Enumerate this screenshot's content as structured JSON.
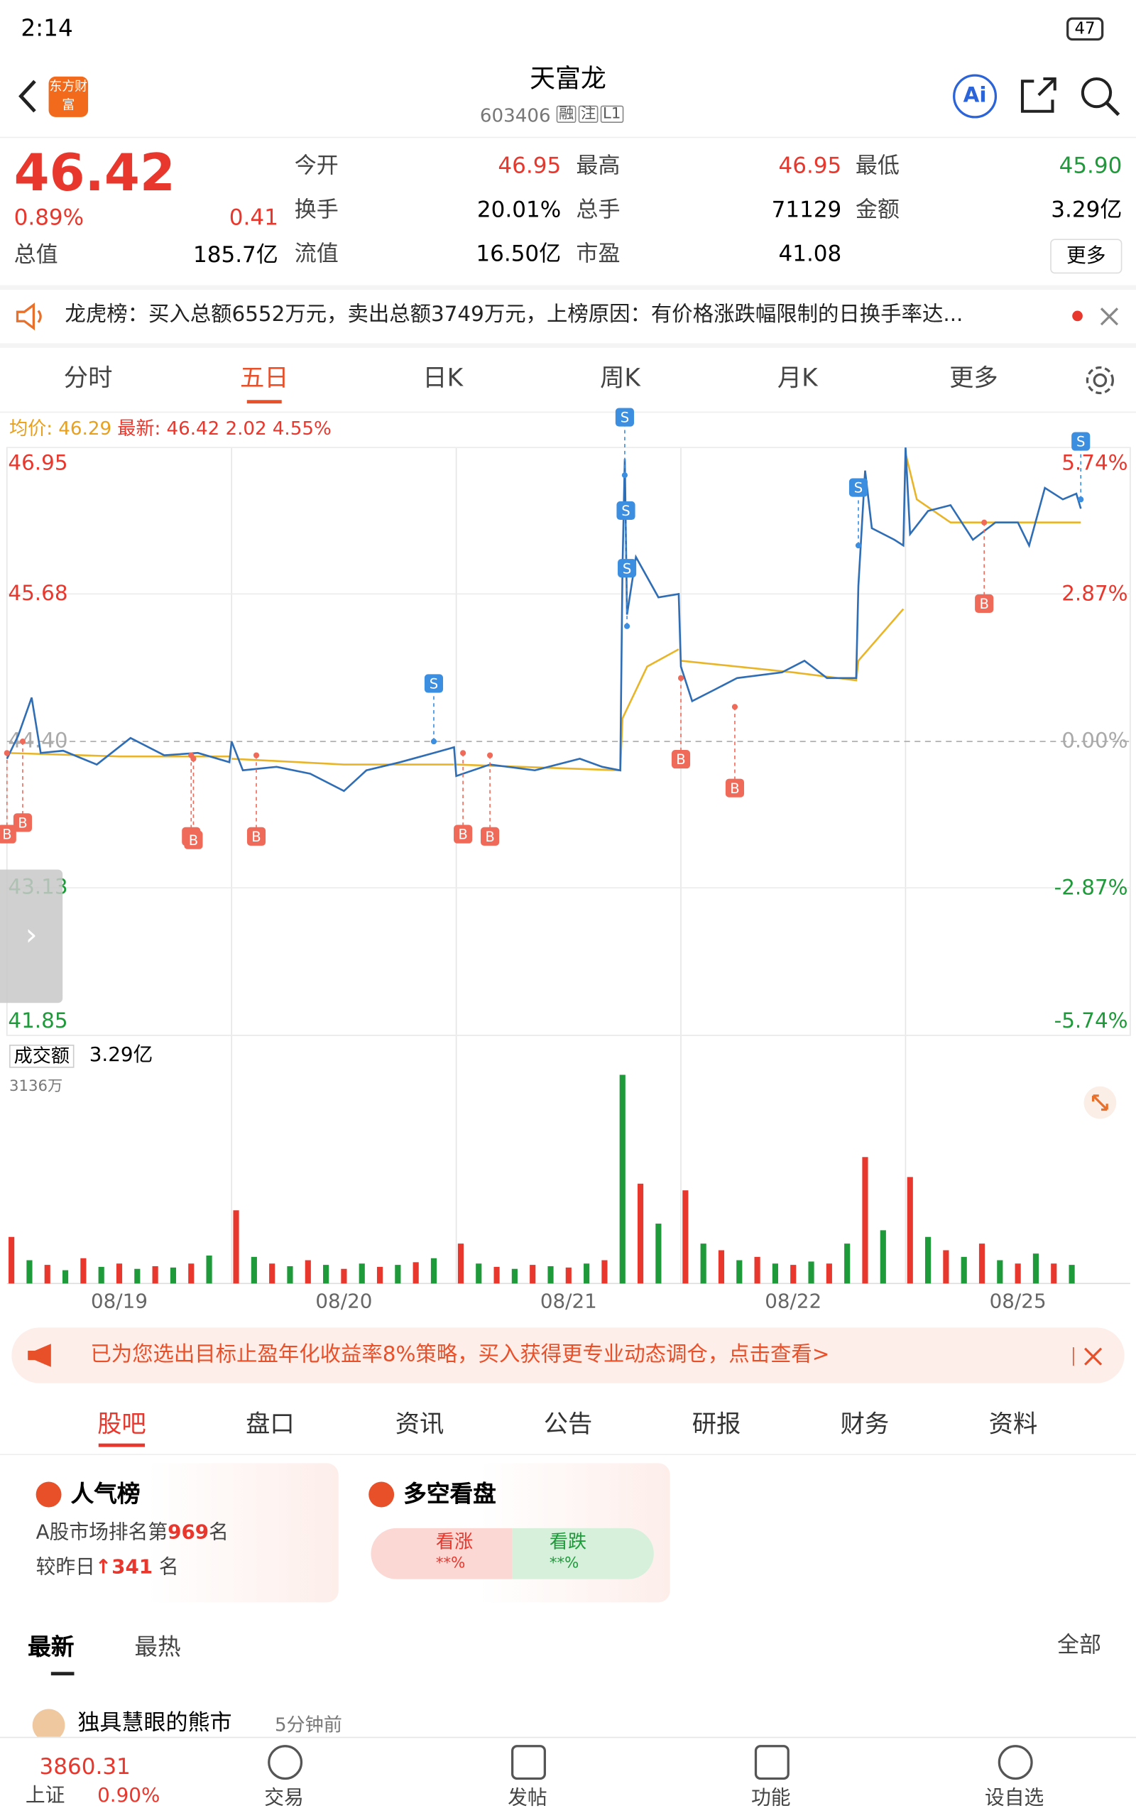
{
  "status_bar": {
    "time": "2:14",
    "battery": "47"
  },
  "header": {
    "title": "天富龙",
    "code": "603406",
    "tags": [
      "融",
      "注",
      "L1"
    ],
    "logo": "东方财富",
    "ai": "Ai"
  },
  "quote": {
    "price": "46.42",
    "change_pct": "0.89%",
    "change": "0.41",
    "total_value_label": "总值",
    "total_value": "185.7亿",
    "fields": [
      {
        "label": "今开",
        "value": "46.95"
      },
      {
        "label": "最高",
        "value": "46.95"
      },
      {
        "label": "最低",
        "value": "45.90"
      },
      {
        "label": "换手",
        "value": "20.01%"
      },
      {
        "label": "总手",
        "value": "71129"
      },
      {
        "label": "金额",
        "value": "3.29亿"
      },
      {
        "label": "流值",
        "value": "16.50亿"
      },
      {
        "label": "市盈",
        "value": "41.08"
      }
    ],
    "more": "更多"
  },
  "notice": "龙虎榜：买入总额6552万元，卖出总额3749万元，上榜原因：有价格涨跌幅限制的日换手率达...",
  "tabs": [
    "分时",
    "五日",
    "日K",
    "周K",
    "月K",
    "更多"
  ],
  "info": {
    "avg_label": "均价:",
    "avg": "46.29",
    "latest_label": "最新:",
    "latest": "46.42",
    "change": "2.02",
    "change_pct": "4.55%"
  },
  "chart": {
    "type": "line",
    "ylim": [
      41.85,
      46.95
    ],
    "yticks": [
      46.95,
      45.68,
      {
        "value": 44.4,
        "label": "44.40"
      },
      43.13,
      41.85
    ],
    "y2lim": [
      -5.74,
      5.74
    ],
    "y2ticks": [
      {
        "value": 5.74,
        "label": "5.74%"
      },
      {
        "value": 2.87,
        "label": "2.87%"
      },
      {
        "value": 0,
        "label": "0.00%"
      },
      {
        "value": -2.87,
        "label": "-2.87%"
      },
      {
        "value": -5.74,
        "label": "-5.74%"
      }
    ],
    "xlim": [
      0,
      5
    ],
    "dates": [
      "08/19",
      "08/20",
      "08/21",
      "08/22",
      "08/25"
    ],
    "series": [
      {
        "name": "最新",
        "color": "#2f6db5",
        "x": [
          0,
          0.05,
          0.11,
          0.15,
          0.25,
          0.4,
          0.55,
          0.7,
          0.85,
          0.99,
          1,
          1.05,
          1.2,
          1.35,
          1.5,
          1.6,
          1.75,
          1.9,
          1.99,
          2,
          2.15,
          2.35,
          2.55,
          2.65,
          2.73,
          2.74,
          2.75,
          2.76,
          2.8,
          2.9,
          2.99,
          3,
          3.05,
          3.15,
          3.25,
          3.45,
          3.55,
          3.65,
          3.78,
          3.79,
          3.82,
          3.85,
          3.95,
          3.99,
          4,
          4.02,
          4.1,
          4.2,
          4.3,
          4.4,
          4.5,
          4.55,
          4.62,
          4.7,
          4.76,
          4.78
        ],
        "values": [
          44.25,
          44.45,
          44.78,
          44.3,
          44.32,
          44.2,
          44.43,
          44.28,
          44.3,
          44.22,
          44.4,
          44.15,
          44.18,
          44.12,
          43.97,
          44.15,
          44.22,
          44.3,
          44.35,
          44.1,
          44.2,
          44.15,
          44.25,
          44.18,
          44.15,
          45.9,
          46.85,
          45.5,
          46,
          45.65,
          45.68,
          45.05,
          44.75,
          44.85,
          44.95,
          45,
          45.1,
          44.95,
          44.95,
          45.75,
          46.75,
          46.25,
          46.15,
          46.1,
          46.95,
          46.2,
          46.4,
          46.45,
          46.15,
          46.3,
          46.3,
          46.1,
          46.6,
          46.5,
          46.55,
          46.42
        ]
      },
      {
        "name": "均价",
        "color": "#e8b52a",
        "x": [
          0,
          0.5,
          0.99,
          0.995,
          1,
          1.5,
          1.99,
          1.995,
          2,
          2.73,
          2.74,
          2.85,
          2.99,
          2.995,
          3,
          3.5,
          3.78,
          3.79,
          3.99,
          3.995,
          4,
          4.05,
          4.2,
          4.78
        ],
        "values": [
          44.3,
          44.27,
          44.27,
          null,
          44.25,
          44.2,
          44.2,
          null,
          44.2,
          44.15,
          44.6,
          45.05,
          45.2,
          null,
          45.1,
          45,
          44.93,
          45.1,
          45.55,
          null,
          46.9,
          46.5,
          46.3,
          46.3
        ]
      }
    ],
    "markers": [
      {
        "type": "B",
        "x": 0.0,
        "value": 44.3
      },
      {
        "type": "B",
        "x": 0.07,
        "value": 44.4
      },
      {
        "type": "B",
        "x": 0.82,
        "value": 44.28
      },
      {
        "type": "B",
        "x": 0.83,
        "value": 44.25
      },
      {
        "type": "B",
        "x": 1.11,
        "value": 44.28
      },
      {
        "type": "S",
        "x": 1.9,
        "value": 44.4
      },
      {
        "type": "B",
        "x": 2.03,
        "value": 44.3
      },
      {
        "type": "B",
        "x": 2.15,
        "value": 44.28
      },
      {
        "type": "S",
        "x": 2.75,
        "value": 46.71
      },
      {
        "type": "S",
        "x": 2.755,
        "value": 45.9
      },
      {
        "type": "S",
        "x": 2.76,
        "value": 45.4
      },
      {
        "type": "B",
        "x": 3.0,
        "value": 44.95
      },
      {
        "type": "B",
        "x": 3.24,
        "value": 44.7
      },
      {
        "type": "S",
        "x": 3.79,
        "value": 46.1
      },
      {
        "type": "B",
        "x": 4.35,
        "value": 46.3
      },
      {
        "type": "S",
        "x": 4.78,
        "value": 46.5
      }
    ]
  },
  "volume": {
    "type": "bar",
    "label": "成交额",
    "total": "3.29亿",
    "ylim": [
      0,
      3136
    ],
    "yticks": [
      {
        "value": 3136,
        "label": "3136万"
      }
    ],
    "colors": [
      "#e8382e",
      "#1f9a3a"
    ],
    "x": [
      0.02,
      0.1,
      0.18,
      0.26,
      0.34,
      0.42,
      0.5,
      0.58,
      0.66,
      0.74,
      0.82,
      0.9,
      1.02,
      1.1,
      1.18,
      1.26,
      1.34,
      1.42,
      1.5,
      1.58,
      1.66,
      1.74,
      1.82,
      1.9,
      2.02,
      2.1,
      2.18,
      2.26,
      2.34,
      2.42,
      2.5,
      2.58,
      2.66,
      2.74,
      2.82,
      2.9,
      3.02,
      3.1,
      3.18,
      3.26,
      3.34,
      3.42,
      3.5,
      3.58,
      3.66,
      3.74,
      3.82,
      3.9,
      4.02,
      4.1,
      4.18,
      4.26,
      4.34,
      4.42,
      4.5,
      4.58,
      4.66,
      4.74
    ],
    "values": [
      700,
      350,
      280,
      200,
      380,
      250,
      300,
      220,
      260,
      240,
      300,
      420,
      1100,
      400,
      300,
      260,
      350,
      280,
      220,
      300,
      250,
      280,
      320,
      380,
      600,
      300,
      250,
      220,
      280,
      260,
      240,
      300,
      350,
      3136,
      1500,
      900,
      1400,
      600,
      500,
      350,
      400,
      300,
      280,
      330,
      300,
      600,
      1900,
      800,
      1600,
      700,
      500,
      400,
      600,
      350,
      300,
      450,
      300,
      280
    ]
  },
  "ad": "已为您选出目标止盈年化收益率8%策略，买入获得更专业动态调仓，点击查看>",
  "section_tabs": [
    "股吧",
    "盘口",
    "资讯",
    "公告",
    "研报",
    "财务",
    "资料"
  ],
  "popularity": {
    "title": "人气榜",
    "rank_prefix": "A股市场排名第",
    "rank": "969",
    "rank_suffix": "名",
    "change_prefix": "较昨日",
    "change": "341",
    "change_suffix": "名"
  },
  "sentiment": {
    "title": "多空看盘",
    "up": "看涨",
    "up_pct": "**%",
    "down": "看跌",
    "down_pct": "**%"
  },
  "feed": {
    "tabs": [
      "最新",
      "最热"
    ],
    "filter": "全部",
    "post_author": "独具慧眼的熊市",
    "post_time": "5分钟前"
  },
  "bottom": {
    "index_value": "3860.31",
    "index_name": "上证",
    "index_change": "0.90%",
    "items": [
      "交易",
      "发帖",
      "功能",
      "设自选"
    ]
  }
}
